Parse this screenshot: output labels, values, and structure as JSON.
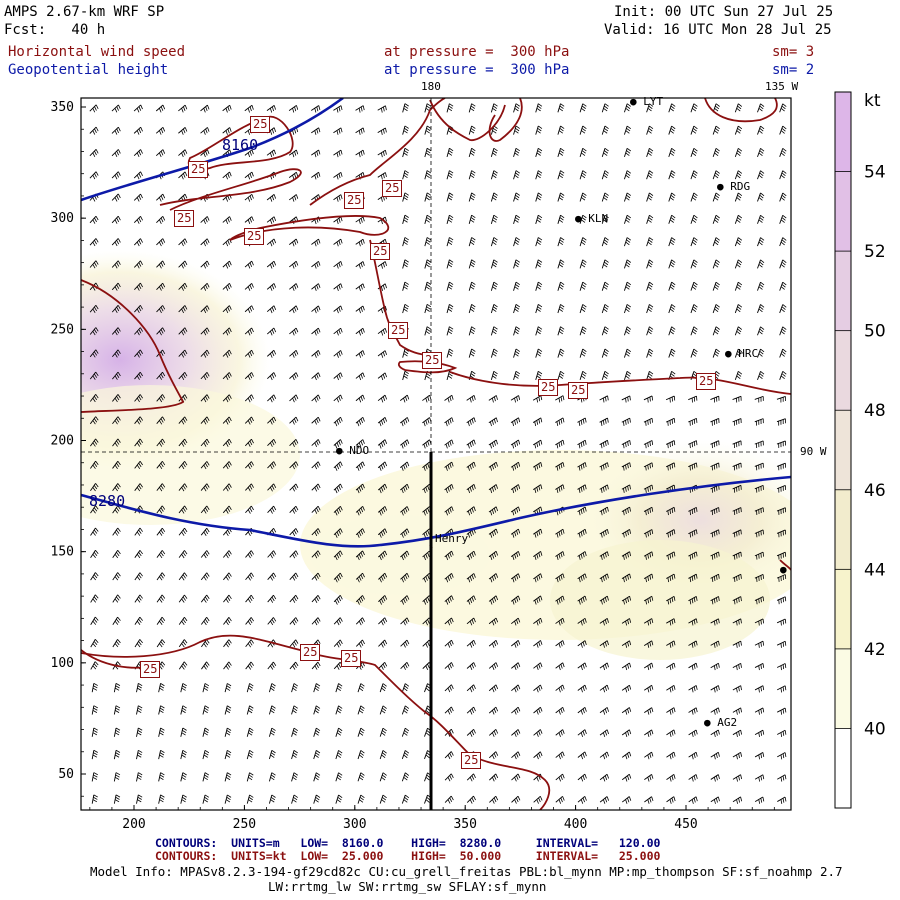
{
  "header": {
    "model_line": "AMPS 2.67-km WRF SP",
    "init_line": "Init: 00 UTC Sun 27 Jul 25",
    "fcst_line": "Fcst:   40 h",
    "valid_line": "Valid: 16 UTC Mon 28 Jul 25",
    "field1": {
      "name": "Horizontal wind speed",
      "level": "at pressure =  300 hPa",
      "sm": "sm= 3"
    },
    "field2": {
      "name": "Geopotential height",
      "level": "at pressure =  300 hPa",
      "sm": "sm= 2"
    }
  },
  "map": {
    "lon_labels": [
      "180",
      "135 W",
      "90 W"
    ],
    "x_ticks": [
      "200",
      "250",
      "300",
      "350",
      "400",
      "450"
    ],
    "y_ticks": [
      "350",
      "300",
      "250",
      "200",
      "150",
      "100",
      "50"
    ],
    "stations": [
      "LYT",
      "RDG",
      "KLN",
      "HRC",
      "NDO",
      "Henry",
      "AG2"
    ],
    "wind_contour_label": "25",
    "height_contour_labels": [
      "8160",
      "8280"
    ],
    "colorbar": {
      "unit": "kt",
      "levels": [
        "54",
        "52",
        "50",
        "48",
        "46",
        "44",
        "42",
        "40"
      ],
      "colors": [
        "#ddb6e8",
        "#e1c0e6",
        "#e5cde3",
        "#ead9df",
        "#eee4d9",
        "#f2eccd",
        "#f7f3cc",
        "#fbfbe4",
        "#ffffff"
      ]
    }
  },
  "footer": {
    "contours1": "CONTOURS:  UNITS=m   LOW=  8160.0    HIGH=  8280.0     INTERVAL=   120.00",
    "contours2": "CONTOURS:  UNITS=kt  LOW=  25.000    HIGH=  50.000     INTERVAL=   25.000",
    "model_info": "Model Info: MPASv8.2.3-194-gf29cd82c CU:cu_grell_freitas PBL:bl_mynn MP:mp_thompson SF:sf_noahmp 2.7",
    "model_info2": "LW:rrtmg_lw SW:rrtmg_sw SFLAY:sf_mynn"
  }
}
